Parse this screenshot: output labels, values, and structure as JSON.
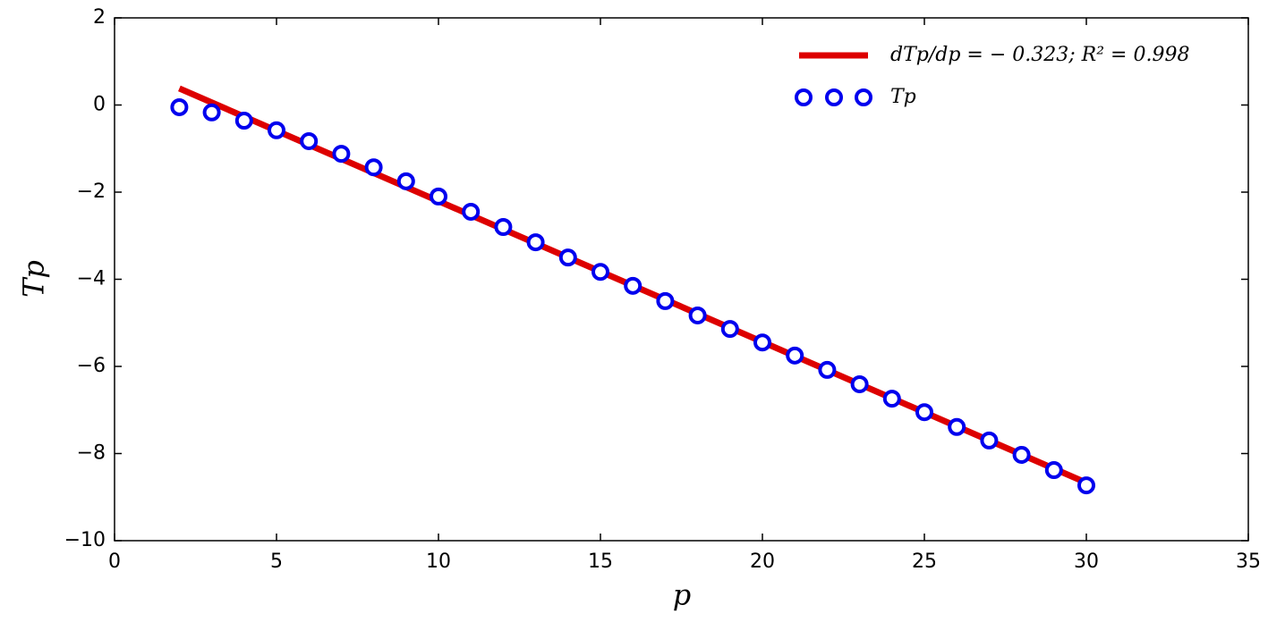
{
  "chart_data": {
    "type": "scatter",
    "xlabel": "p",
    "ylabel": "Tp",
    "xlim": [
      0,
      35
    ],
    "xticks": [
      0,
      5,
      10,
      15,
      20,
      25,
      30,
      35
    ],
    "ylim": [
      -10,
      2
    ],
    "yticks": [
      {
        "value": -10,
        "label": "−10"
      },
      {
        "value": -8,
        "label": "−8"
      },
      {
        "value": -6,
        "label": "−6"
      },
      {
        "value": -4,
        "label": "−4"
      },
      {
        "value": -2,
        "label": "−2"
      },
      0,
      2
    ],
    "legend": "upper right",
    "series": [
      {
        "name": "dTp/dp = − 0.323; R² = 0.998",
        "kind": "line",
        "color": "#dd0000",
        "x": [
          2,
          30
        ],
        "values": [
          0.38,
          -8.67
        ]
      },
      {
        "name": "Tp",
        "kind": "marker",
        "color": "#0000ee",
        "x": [
          2,
          3,
          4,
          5,
          6,
          7,
          8,
          9,
          10,
          11,
          12,
          13,
          14,
          15,
          16,
          17,
          18,
          19,
          20,
          21,
          22,
          23,
          24,
          25,
          26,
          27,
          28,
          29,
          30
        ],
        "values": [
          -0.05,
          -0.17,
          -0.36,
          -0.58,
          -0.83,
          -1.12,
          -1.43,
          -1.75,
          -2.1,
          -2.45,
          -2.8,
          -3.15,
          -3.5,
          -3.83,
          -4.15,
          -4.5,
          -4.83,
          -5.14,
          -5.45,
          -5.75,
          -6.08,
          -6.41,
          -6.74,
          -7.05,
          -7.39,
          -7.7,
          -8.03,
          -8.38,
          -8.73
        ]
      }
    ]
  }
}
